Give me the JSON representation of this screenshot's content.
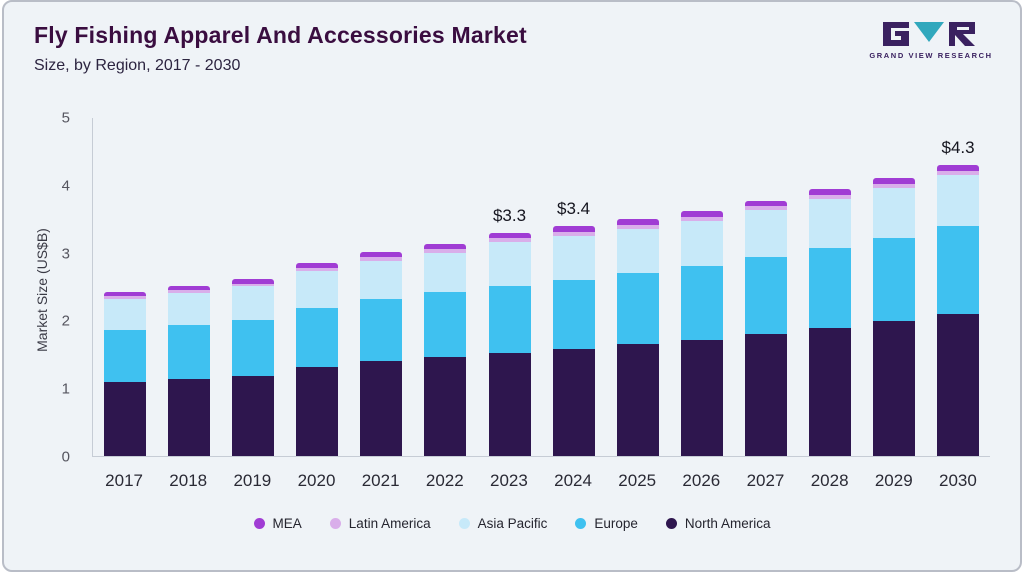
{
  "header": {
    "title": "Fly Fishing Apparel And Accessories Market",
    "subtitle": "Size, by Region, 2017 - 2030"
  },
  "logo": {
    "brand": "GRAND VIEW RESEARCH",
    "mark_colors": {
      "dark": "#3a2160",
      "teal": "#31a8bd"
    }
  },
  "chart_data": {
    "type": "bar",
    "stacked": true,
    "title": "Fly Fishing Apparel And Accessories Market Size, by Region, 2017 - 2030",
    "xlabel": "",
    "ylabel": "Market Size (US$B)",
    "ylim": [
      0,
      5
    ],
    "yticks": [
      0,
      1,
      2,
      3,
      4,
      5
    ],
    "grid": false,
    "legend_position": "bottom",
    "categories": [
      "2017",
      "2018",
      "2019",
      "2020",
      "2021",
      "2022",
      "2023",
      "2024",
      "2025",
      "2026",
      "2027",
      "2028",
      "2029",
      "2030"
    ],
    "series": [
      {
        "name": "North America",
        "color": "#2e164e",
        "values": [
          1.1,
          1.14,
          1.19,
          1.31,
          1.4,
          1.46,
          1.52,
          1.58,
          1.65,
          1.72,
          1.81,
          1.9,
          1.99,
          2.1
        ]
      },
      {
        "name": "Europe",
        "color": "#3fc1f0",
        "values": [
          0.77,
          0.8,
          0.82,
          0.88,
          0.92,
          0.96,
          1.0,
          1.03,
          1.06,
          1.09,
          1.13,
          1.18,
          1.24,
          1.3
        ]
      },
      {
        "name": "Asia Pacific",
        "color": "#c7e9f9",
        "values": [
          0.45,
          0.47,
          0.5,
          0.54,
          0.57,
          0.59,
          0.64,
          0.65,
          0.65,
          0.67,
          0.7,
          0.72,
          0.74,
          0.75
        ]
      },
      {
        "name": "Latin America",
        "color": "#d9aeea",
        "values": [
          0.04,
          0.04,
          0.04,
          0.05,
          0.05,
          0.05,
          0.06,
          0.06,
          0.06,
          0.06,
          0.06,
          0.06,
          0.06,
          0.06
        ]
      },
      {
        "name": "MEA",
        "color": "#a03cd4",
        "values": [
          0.06,
          0.07,
          0.07,
          0.07,
          0.08,
          0.08,
          0.08,
          0.08,
          0.08,
          0.08,
          0.08,
          0.09,
          0.09,
          0.09
        ]
      }
    ],
    "annotations": [
      {
        "category": "2023",
        "label": "$3.3"
      },
      {
        "category": "2024",
        "label": "$3.4"
      },
      {
        "category": "2030",
        "label": "$4.3"
      }
    ],
    "legend": [
      "MEA",
      "Latin America",
      "Asia Pacific",
      "Europe",
      "North America"
    ]
  }
}
